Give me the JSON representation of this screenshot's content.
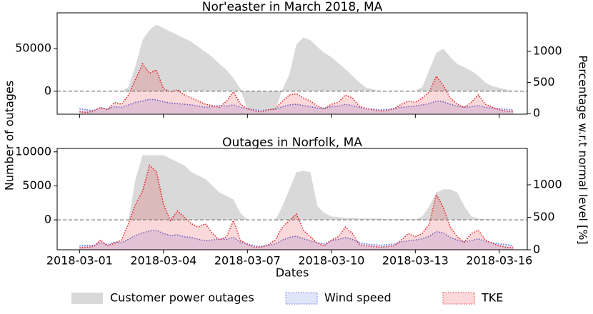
{
  "figure": {
    "ylabel": "Number of outages",
    "y2label": "Percentage w.r.t normal level [%]"
  },
  "chart_data": [
    {
      "type": "area",
      "title": "Nor'easter in March 2018, MA",
      "x": [
        0,
        0.25,
        0.5,
        0.75,
        1,
        1.25,
        1.5,
        1.75,
        2,
        2.25,
        2.5,
        2.75,
        3,
        3.25,
        3.5,
        3.75,
        4,
        4.25,
        4.5,
        4.75,
        5,
        5.25,
        5.5,
        5.75,
        6,
        6.25,
        6.5,
        6.75,
        7,
        7.25,
        7.5,
        7.75,
        8,
        8.25,
        8.5,
        8.75,
        9,
        9.25,
        9.5,
        9.75,
        10,
        10.25,
        10.5,
        10.75,
        11,
        11.25,
        11.5,
        11.75,
        12,
        12.25,
        12.5,
        12.75,
        13,
        13.25,
        13.5,
        13.75,
        14,
        14.25,
        14.5,
        14.75,
        15,
        15.25,
        15.5
      ],
      "xlim": [
        -0.8,
        16.0
      ],
      "ylim": [
        -27000,
        92000
      ],
      "yticks": [
        0,
        50000
      ],
      "y2lim": [
        -10,
        1620
      ],
      "y2ticks": [
        0,
        500,
        1000
      ],
      "hline": 0,
      "series": [
        {
          "name": "Customer power outages",
          "color": "#d9d9d9",
          "values": [
            0,
            0,
            0,
            0,
            0,
            0,
            0,
            5000,
            30000,
            60000,
            72000,
            78000,
            74000,
            70000,
            66000,
            62000,
            58000,
            52000,
            46000,
            40000,
            32000,
            25000,
            15000,
            3000,
            -22000,
            -22000,
            -22000,
            -22000,
            -22000,
            2000,
            20000,
            55000,
            63000,
            60000,
            52000,
            45000,
            40000,
            33000,
            26000,
            18000,
            10000,
            4000,
            2000,
            0,
            0,
            0,
            0,
            0,
            0,
            5000,
            25000,
            45000,
            50000,
            40000,
            32000,
            28000,
            24000,
            18000,
            10000,
            6000,
            4000,
            2000,
            0
          ]
        },
        {
          "name": "Wind speed",
          "color": "#5a6fe0",
          "axis": "y2",
          "linestyle": "dotted",
          "values": [
            80,
            60,
            50,
            90,
            70,
            110,
            100,
            140,
            180,
            200,
            230,
            220,
            190,
            170,
            160,
            150,
            140,
            120,
            100,
            110,
            130,
            120,
            140,
            100,
            80,
            60,
            50,
            60,
            70,
            110,
            140,
            150,
            130,
            110,
            90,
            80,
            110,
            120,
            150,
            130,
            100,
            80,
            70,
            60,
            70,
            80,
            100,
            110,
            120,
            140,
            160,
            200,
            190,
            150,
            120,
            100,
            110,
            130,
            100,
            90,
            80,
            70,
            60
          ]
        },
        {
          "name": "TKE",
          "color": "#e8262c",
          "axis": "y2",
          "linestyle": "dotted",
          "values": [
            30,
            20,
            40,
            100,
            60,
            180,
            150,
            300,
            550,
            800,
            650,
            700,
            400,
            350,
            380,
            300,
            250,
            200,
            150,
            130,
            100,
            200,
            350,
            150,
            80,
            40,
            30,
            60,
            80,
            200,
            300,
            320,
            250,
            200,
            120,
            80,
            150,
            180,
            300,
            250,
            120,
            80,
            60,
            40,
            50,
            80,
            150,
            200,
            180,
            250,
            350,
            600,
            450,
            250,
            150,
            100,
            180,
            300,
            150,
            100,
            60,
            40,
            30
          ]
        }
      ]
    },
    {
      "type": "area",
      "title": "Outages in Norfolk, MA",
      "xlabel": "Dates",
      "x": [
        0,
        0.25,
        0.5,
        0.75,
        1,
        1.25,
        1.5,
        1.75,
        2,
        2.25,
        2.5,
        2.75,
        3,
        3.25,
        3.5,
        3.75,
        4,
        4.25,
        4.5,
        4.75,
        5,
        5.25,
        5.5,
        5.75,
        6,
        6.25,
        6.5,
        6.75,
        7,
        7.25,
        7.5,
        7.75,
        8,
        8.25,
        8.5,
        8.75,
        9,
        9.25,
        9.5,
        9.75,
        10,
        10.25,
        10.5,
        10.75,
        11,
        11.25,
        11.5,
        11.75,
        12,
        12.25,
        12.5,
        12.75,
        13,
        13.25,
        13.5,
        13.75,
        14,
        14.25,
        14.5,
        14.75,
        15,
        15.25,
        15.5
      ],
      "xlim": [
        -0.8,
        16.0
      ],
      "xticks": [
        {
          "value": 0,
          "label": "2018-03-01"
        },
        {
          "value": 3,
          "label": "2018-03-04"
        },
        {
          "value": 6,
          "label": "2018-03-07"
        },
        {
          "value": 9,
          "label": "2018-03-10"
        },
        {
          "value": 12,
          "label": "2018-03-13"
        },
        {
          "value": 15,
          "label": "2018-03-16"
        }
      ],
      "ylim": [
        -4400,
        10500
      ],
      "yticks": [
        0,
        5000,
        10000
      ],
      "y2lim": [
        0,
        1560
      ],
      "y2ticks": [
        0,
        500,
        1000
      ],
      "hline": 0,
      "series": [
        {
          "name": "Customer power outages",
          "color": "#d9d9d9",
          "values": [
            0,
            0,
            0,
            0,
            0,
            0,
            0,
            0,
            6000,
            9500,
            9500,
            9500,
            9500,
            9000,
            8500,
            8000,
            7000,
            6500,
            6000,
            5000,
            4000,
            3500,
            3000,
            1000,
            0,
            0,
            0,
            0,
            0,
            2000,
            4500,
            7000,
            7200,
            7000,
            2000,
            1000,
            500,
            400,
            300,
            300,
            200,
            200,
            200,
            200,
            100,
            100,
            100,
            100,
            100,
            500,
            2000,
            4000,
            4500,
            4500,
            4000,
            2000,
            500,
            200,
            100,
            100,
            0,
            0,
            0
          ]
        },
        {
          "name": "Wind speed",
          "color": "#5a6fe0",
          "axis": "y2",
          "linestyle": "dotted",
          "values": [
            60,
            70,
            60,
            110,
            80,
            120,
            110,
            160,
            220,
            260,
            290,
            300,
            250,
            220,
            230,
            200,
            190,
            160,
            140,
            150,
            170,
            160,
            190,
            120,
            90,
            60,
            50,
            70,
            90,
            150,
            190,
            210,
            170,
            140,
            110,
            90,
            140,
            160,
            190,
            160,
            110,
            90,
            80,
            70,
            80,
            90,
            120,
            140,
            150,
            170,
            210,
            280,
            260,
            190,
            150,
            120,
            140,
            170,
            130,
            110,
            90,
            80,
            60
          ]
        },
        {
          "name": "TKE",
          "color": "#e8262c",
          "axis": "y2",
          "linestyle": "dotted",
          "values": [
            30,
            40,
            50,
            150,
            60,
            100,
            150,
            400,
            700,
            900,
            1300,
            1200,
            700,
            450,
            600,
            500,
            400,
            350,
            400,
            250,
            150,
            200,
            450,
            150,
            80,
            40,
            40,
            80,
            150,
            350,
            450,
            550,
            300,
            200,
            100,
            60,
            150,
            200,
            350,
            250,
            80,
            60,
            50,
            40,
            50,
            60,
            150,
            250,
            200,
            250,
            400,
            850,
            650,
            350,
            200,
            120,
            250,
            300,
            150,
            100,
            60,
            40,
            30
          ]
        }
      ]
    }
  ]
}
